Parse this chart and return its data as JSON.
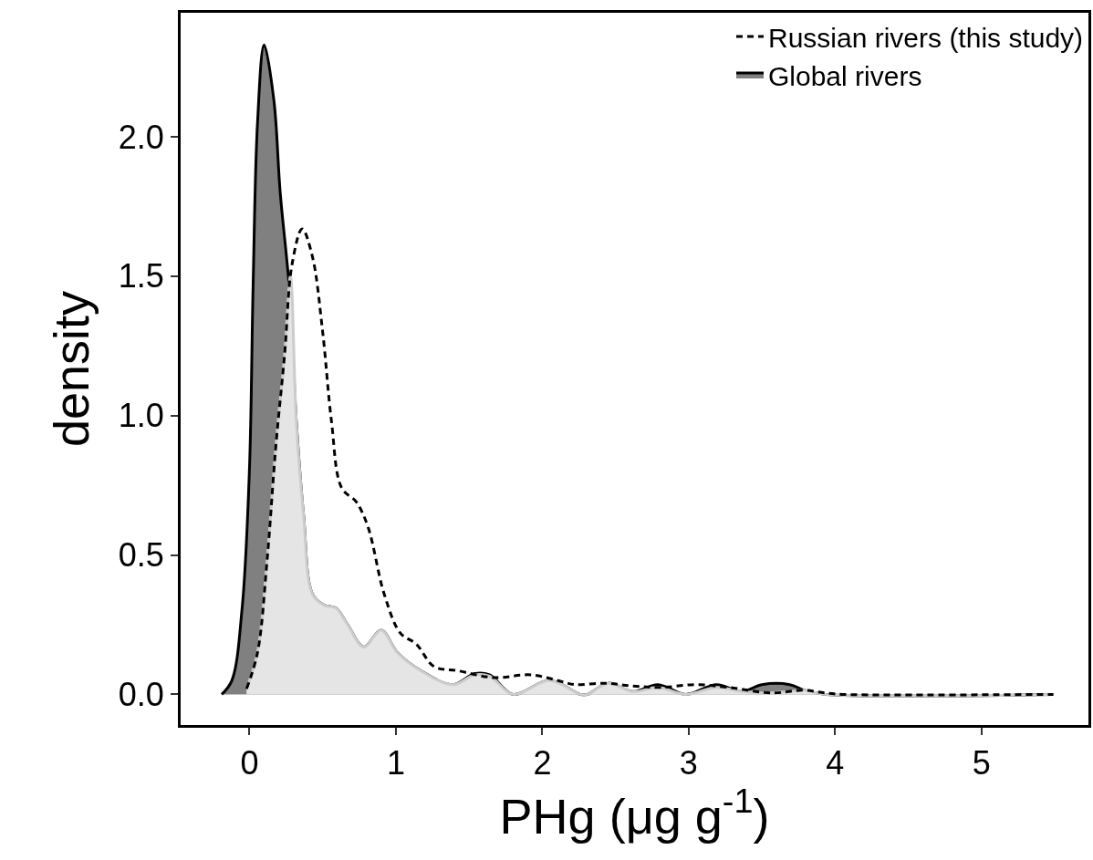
{
  "chart_data": {
    "type": "area",
    "xlabel": "PHg (μg g$^{-1}$)",
    "ylabel": "density",
    "xlim": [
      -0.47,
      5.73
    ],
    "ylim": [
      -0.11,
      2.445
    ],
    "xticks": [
      0,
      1,
      2,
      3,
      4,
      5
    ],
    "yticks": [
      {
        "value": 0,
        "label": "0.0"
      },
      {
        "value": 0.5,
        "label": "0.5"
      },
      {
        "value": 1,
        "label": "1.0"
      },
      {
        "value": 1.5,
        "label": "1.5"
      },
      {
        "value": 2,
        "label": "2.0"
      }
    ],
    "legend": "top right",
    "marker": "none",
    "series": [
      {
        "name": "Global rivers",
        "color": "#808080",
        "x": [
          -0.19,
          -0.12,
          -0.05,
          0.0,
          0.025,
          0.055,
          0.1,
          0.167,
          0.21,
          0.275,
          0.32,
          0.37,
          0.43,
          0.51,
          0.59,
          0.67,
          0.78,
          0.9,
          1.01,
          1.17,
          1.39,
          1.54,
          1.64,
          1.8,
          2.05,
          2.26,
          2.31,
          2.45,
          2.62,
          2.79,
          2.98,
          3.19,
          3.36,
          3.5,
          3.69,
          3.79,
          3.93,
          5.49
        ],
        "values": [
          0,
          0.05,
          0.31,
          0.81,
          1.47,
          2.05,
          2.33,
          2.13,
          1.8,
          1.44,
          0.98,
          0.64,
          0.36,
          0.32,
          0.31,
          0.25,
          0.17,
          0.23,
          0.15,
          0.085,
          0.035,
          0.075,
          0.07,
          0,
          0.05,
          0,
          0,
          0.04,
          0.01,
          0.035,
          0,
          0.035,
          0.01,
          0.035,
          0.035,
          0.015,
          0,
          0
        ]
      },
      {
        "color": "#e5e5e5",
        "x": [
          -0.02,
          0.055,
          0.12,
          0.18,
          0.24,
          0.28,
          0.32,
          0.37,
          0.43,
          0.51,
          0.59,
          0.67,
          0.78,
          0.9,
          1.01,
          1.17,
          1.39,
          1.54,
          1.64,
          1.8,
          2.05,
          2.26,
          2.31,
          2.45,
          2.62,
          2.79,
          2.98,
          3.19,
          3.36,
          3.5,
          3.69,
          3.79,
          3.93,
          5.49
        ],
        "values": [
          0.02,
          0.15,
          0.48,
          0.89,
          1.22,
          1.5,
          0.98,
          0.64,
          0.36,
          0.32,
          0.31,
          0.25,
          0.17,
          0.23,
          0.15,
          0.085,
          0.035,
          0.07,
          0.065,
          0,
          0.05,
          0,
          0,
          0.04,
          0.01,
          0.025,
          0,
          0.025,
          0.01,
          0.005,
          0.01,
          0.015,
          0,
          0
        ]
      },
      {
        "name": "Russian rivers (this study)",
        "type": "line",
        "color": "#000000",
        "line_style": "dashed",
        "x": [
          -0.02,
          0.055,
          0.12,
          0.18,
          0.24,
          0.29,
          0.36,
          0.43,
          0.5,
          0.56,
          0.63,
          0.73,
          0.81,
          0.92,
          1.03,
          1.14,
          1.26,
          1.42,
          1.67,
          1.92,
          2.14,
          2.22,
          2.43,
          2.62,
          2.81,
          3.05,
          3.27,
          3.57,
          3.78,
          3.93,
          4.05,
          5.49
        ],
        "values": [
          0.02,
          0.15,
          0.48,
          0.89,
          1.22,
          1.54,
          1.67,
          1.57,
          1.3,
          0.98,
          0.74,
          0.69,
          0.6,
          0.36,
          0.22,
          0.18,
          0.1,
          0.085,
          0.06,
          0.07,
          0.045,
          0.035,
          0.04,
          0.03,
          0.025,
          0.035,
          0.025,
          0.005,
          0.015,
          0.005,
          0,
          0
        ]
      }
    ]
  }
}
